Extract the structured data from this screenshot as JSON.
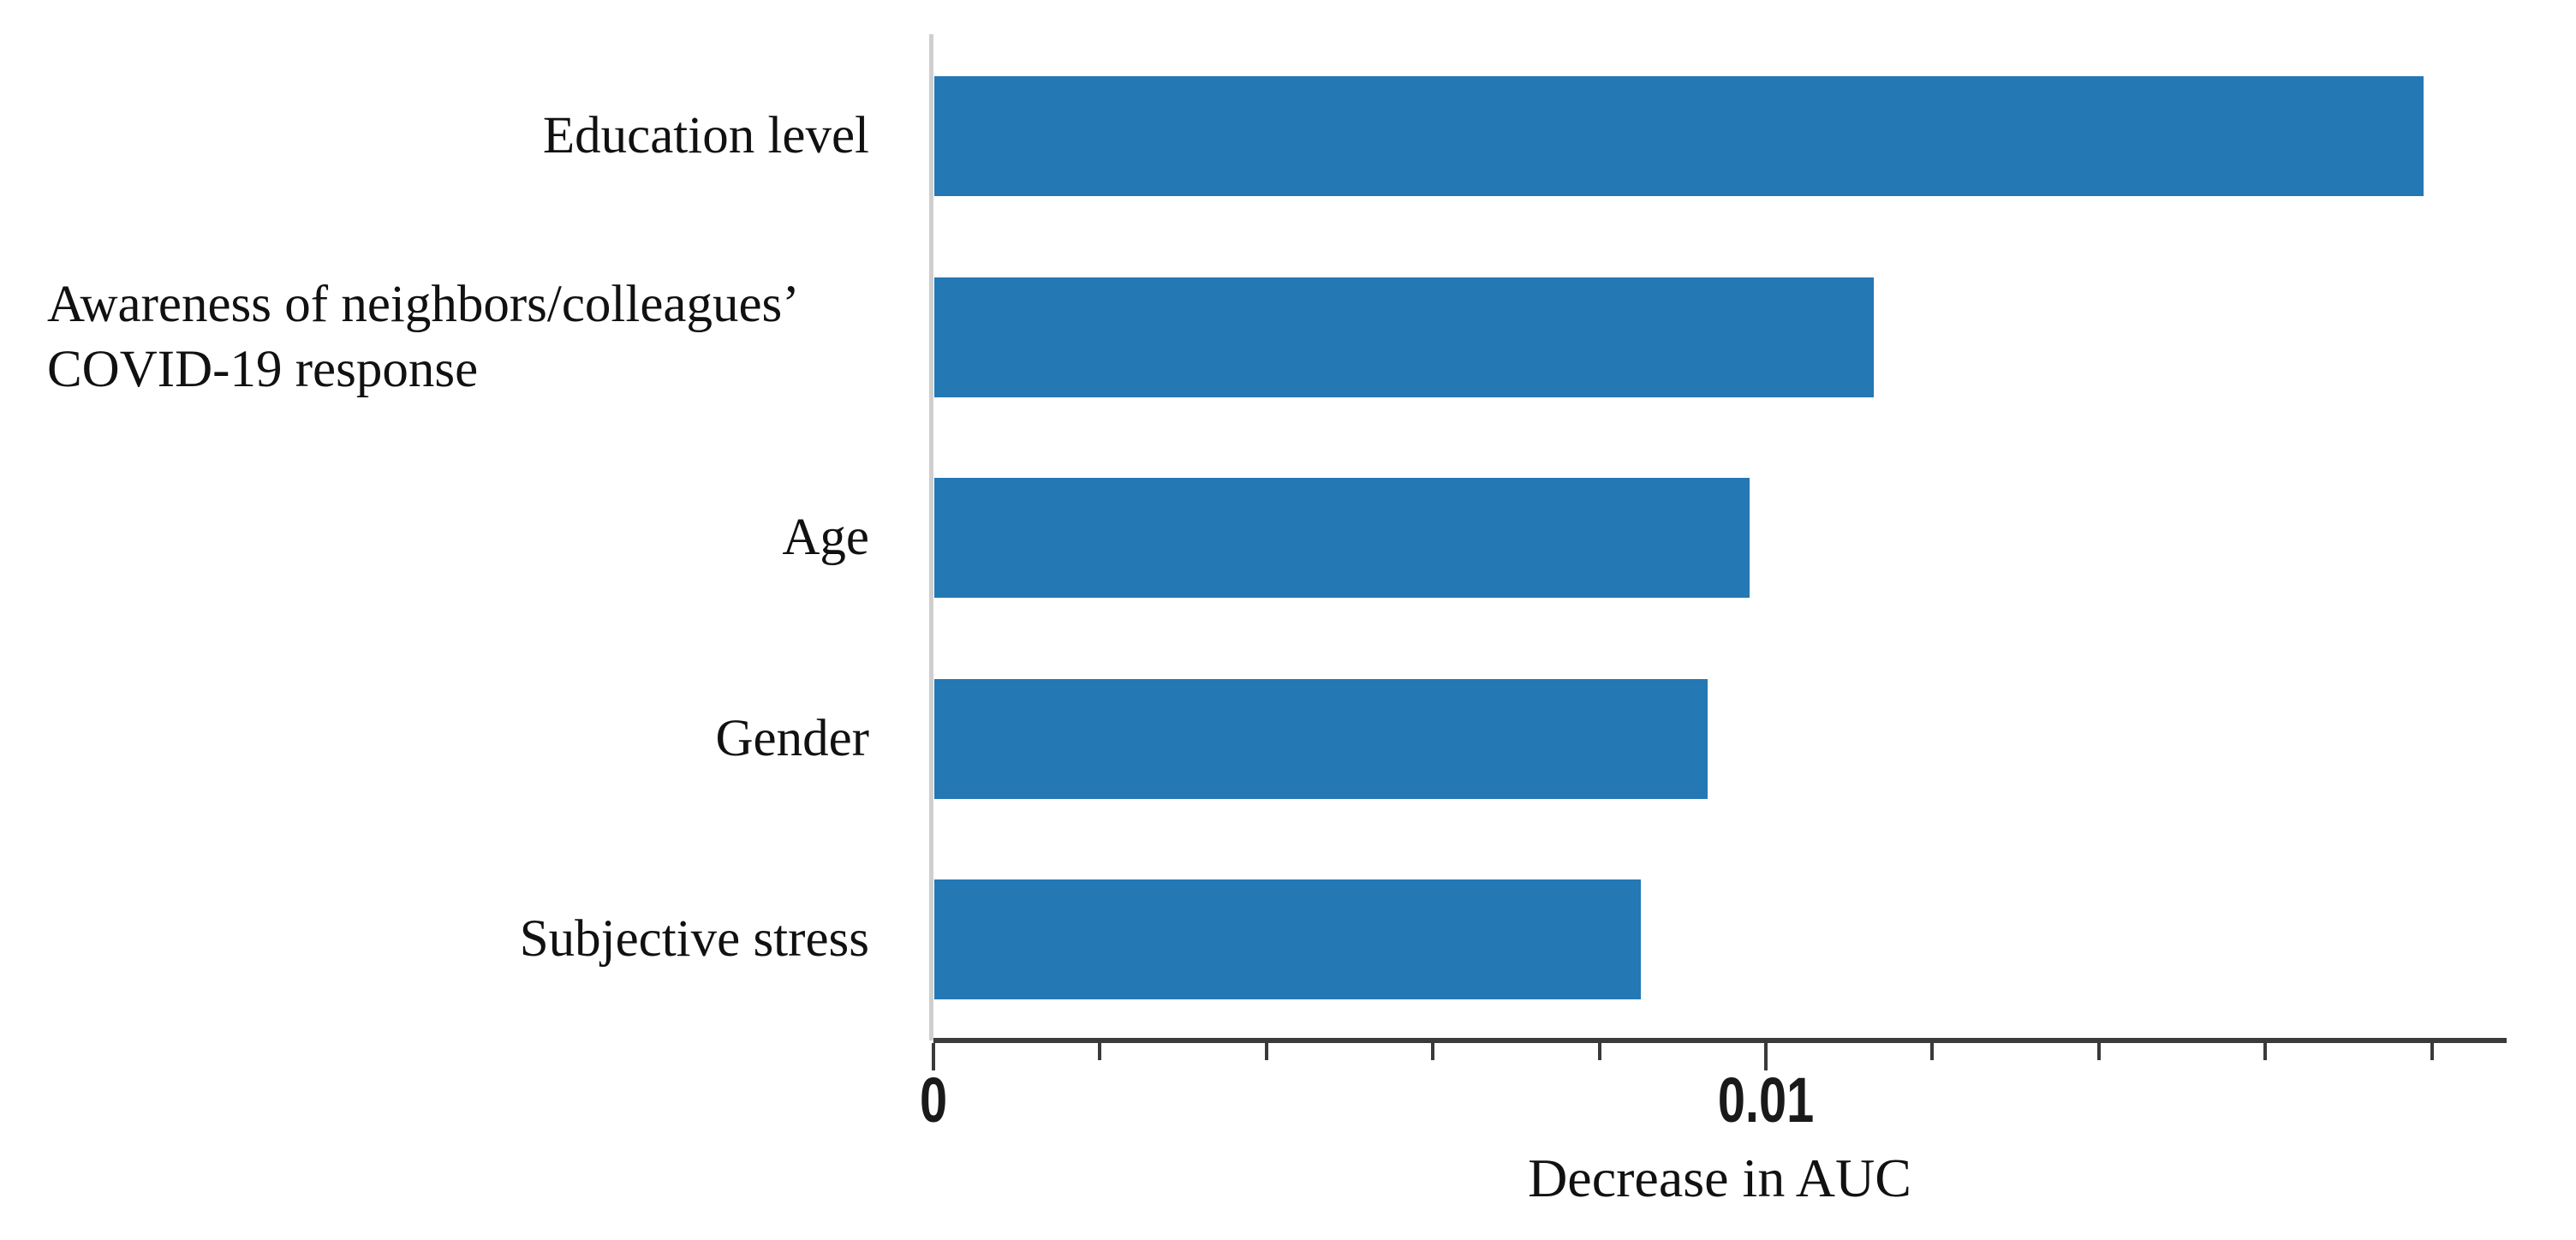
{
  "chart_data": {
    "type": "bar",
    "orientation": "horizontal",
    "title": "",
    "xlabel": "Decrease in AUC",
    "ylabel": "",
    "categories": [
      "Education level",
      "Awareness of neighbors/colleagues’ COVID-19 response",
      "Age",
      "Gender",
      "Subjective stress"
    ],
    "values": [
      0.0179,
      0.0113,
      0.0098,
      0.0093,
      0.0085
    ],
    "bars": [
      {
        "label_lines": [
          "Education level"
        ],
        "value": 0.0179
      },
      {
        "label_lines": [
          "Awareness of neighbors/colleagues’",
          "COVID-19 response"
        ],
        "value": 0.0113,
        "multiline_align": "left"
      },
      {
        "label_lines": [
          "Age"
        ],
        "value": 0.0098
      },
      {
        "label_lines": [
          "Gender"
        ],
        "value": 0.0093
      },
      {
        "label_lines": [
          "Subjective stress"
        ],
        "value": 0.0085
      }
    ],
    "xlim": [
      0,
      0.0189
    ],
    "x_major_ticks": [
      {
        "value": 0,
        "label": "0"
      },
      {
        "value": 0.01,
        "label": "0.01"
      }
    ],
    "x_minor_ticks": [
      0.002,
      0.004,
      0.006,
      0.008,
      0.012,
      0.014,
      0.016,
      0.018
    ],
    "grid": false,
    "legend": false,
    "bar_color": "#2478b4",
    "axis_color": "#3a3a3a",
    "spine_color": "#cfcfcf",
    "text_color": "#111111",
    "background_color": "#ffffff"
  }
}
